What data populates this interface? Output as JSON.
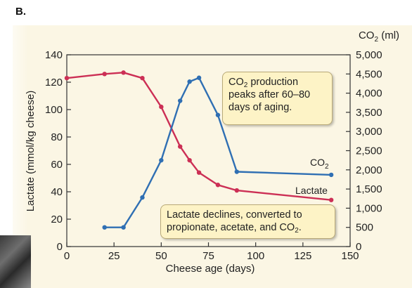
{
  "panel_label": "B.",
  "chart_data": {
    "type": "line",
    "x_axis": {
      "label": "Cheese age (days)",
      "range": [
        0,
        150
      ],
      "ticks": [
        0,
        25,
        50,
        75,
        100,
        125,
        150
      ]
    },
    "y_axis_left": {
      "label": "Lactate (mmol/kg cheese)",
      "range": [
        0,
        140
      ],
      "ticks": [
        0,
        20,
        40,
        60,
        80,
        100,
        120,
        140
      ]
    },
    "y_axis_right": {
      "label_main": "CO",
      "label_sub": "2",
      "label_unit": " (ml)",
      "range": [
        0,
        5000
      ],
      "ticks": [
        0,
        500,
        1000,
        1500,
        2000,
        2500,
        3000,
        3500,
        4000,
        4500,
        5000
      ],
      "tick_labels": [
        "0",
        "500",
        "1,000",
        "1,500",
        "2,000",
        "2,500",
        "3,000",
        "3,500",
        "4,000",
        "4,500",
        "5,000"
      ]
    },
    "grid": false,
    "series": [
      {
        "name": "Lactate",
        "axis": "left",
        "color": "#cc2f55",
        "x": [
          0,
          20,
          30,
          40,
          50,
          60,
          65,
          70,
          80,
          90,
          140
        ],
        "y": [
          123,
          126,
          127,
          123,
          102,
          73,
          63,
          54,
          45,
          41,
          34
        ]
      },
      {
        "name_main": "CO",
        "name_sub": "2",
        "axis": "right",
        "color": "#2f6fb3",
        "x": [
          20,
          30,
          40,
          50,
          60,
          65,
          70,
          80,
          90,
          140
        ],
        "y": [
          500,
          500,
          1280,
          2250,
          3800,
          4300,
          4400,
          3430,
          1950,
          1870
        ]
      }
    ],
    "annotations": [
      {
        "line1_a": "CO",
        "line1_sub": "2",
        "line1_b": " production",
        "line2": "peaks after 60–80",
        "line3": "days of aging."
      },
      {
        "line1": "Lactate declines, converted to",
        "line2_a": "propionate, acetate, and CO",
        "line2_sub": "2",
        "line2_b": "."
      }
    ]
  }
}
